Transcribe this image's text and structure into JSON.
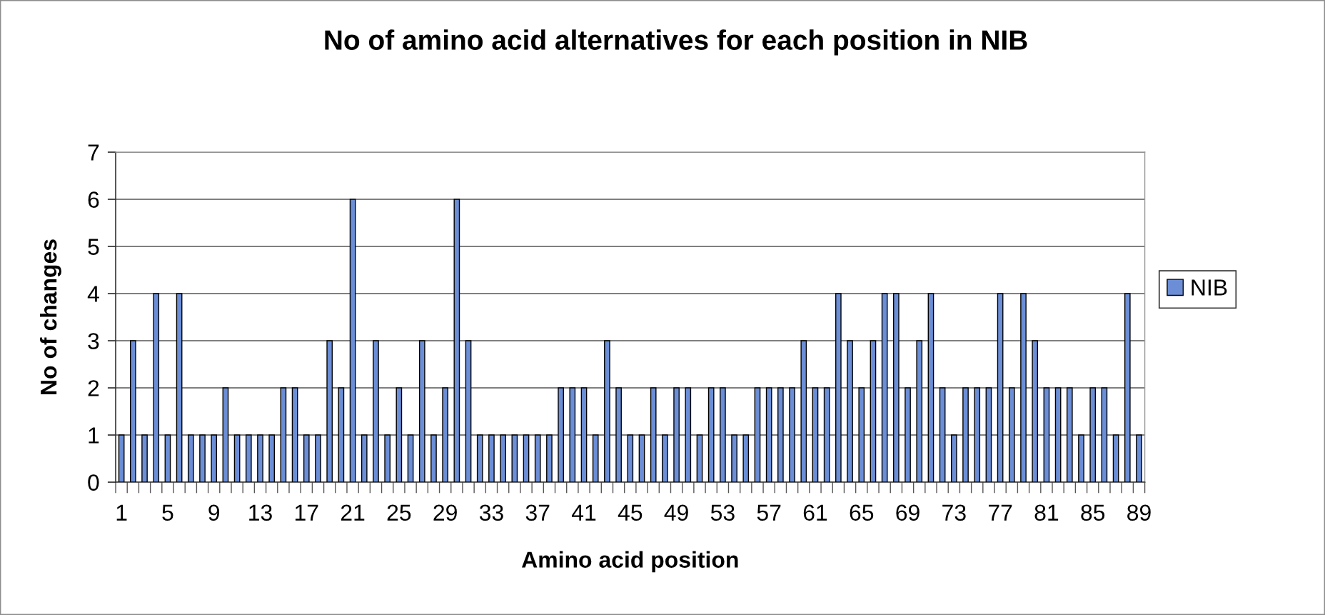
{
  "chart_data": {
    "type": "bar",
    "title": "No of amino acid alternatives for each position in NIB",
    "xlabel": "Amino acid position",
    "ylabel": "No of changes",
    "categories": [
      "1",
      null,
      null,
      null,
      "5",
      null,
      null,
      null,
      "9",
      null,
      null,
      null,
      "13",
      null,
      null,
      null,
      "17",
      null,
      null,
      null,
      "21",
      null,
      null,
      null,
      "25",
      null,
      null,
      null,
      "29",
      null,
      null,
      null,
      "33",
      null,
      null,
      null,
      "37",
      null,
      null,
      null,
      "41",
      null,
      null,
      null,
      "45",
      null,
      null,
      null,
      "49",
      null,
      null,
      null,
      "53",
      null,
      null,
      null,
      "57",
      null,
      null,
      null,
      "61",
      null,
      null,
      null,
      "65",
      null,
      null,
      null,
      "69",
      null,
      null,
      null,
      "73",
      null,
      null,
      null,
      "77",
      null,
      null,
      null,
      "81",
      null,
      null,
      null,
      "85",
      null,
      null,
      null,
      "89"
    ],
    "series": [
      {
        "name": "NIB",
        "color": "#6b8ed6",
        "values": [
          1,
          3,
          1,
          4,
          1,
          4,
          1,
          1,
          1,
          2,
          1,
          1,
          1,
          1,
          2,
          2,
          1,
          1,
          3,
          2,
          6,
          1,
          3,
          1,
          2,
          1,
          3,
          1,
          2,
          6,
          3,
          1,
          1,
          1,
          1,
          1,
          1,
          1,
          2,
          2,
          2,
          1,
          3,
          2,
          1,
          1,
          2,
          1,
          2,
          2,
          1,
          2,
          2,
          1,
          1,
          2,
          2,
          2,
          2,
          3,
          2,
          2,
          4,
          3,
          2,
          3,
          4,
          4,
          2,
          3,
          4,
          2,
          1,
          2,
          2,
          2,
          4,
          2,
          4,
          3,
          2,
          2,
          2,
          1,
          2,
          2,
          1,
          4,
          1
        ]
      }
    ],
    "ylim": [
      0,
      7
    ],
    "yticks": [
      0,
      1,
      2,
      3,
      4,
      5,
      6,
      7
    ],
    "grid": "y",
    "legend": "right"
  }
}
